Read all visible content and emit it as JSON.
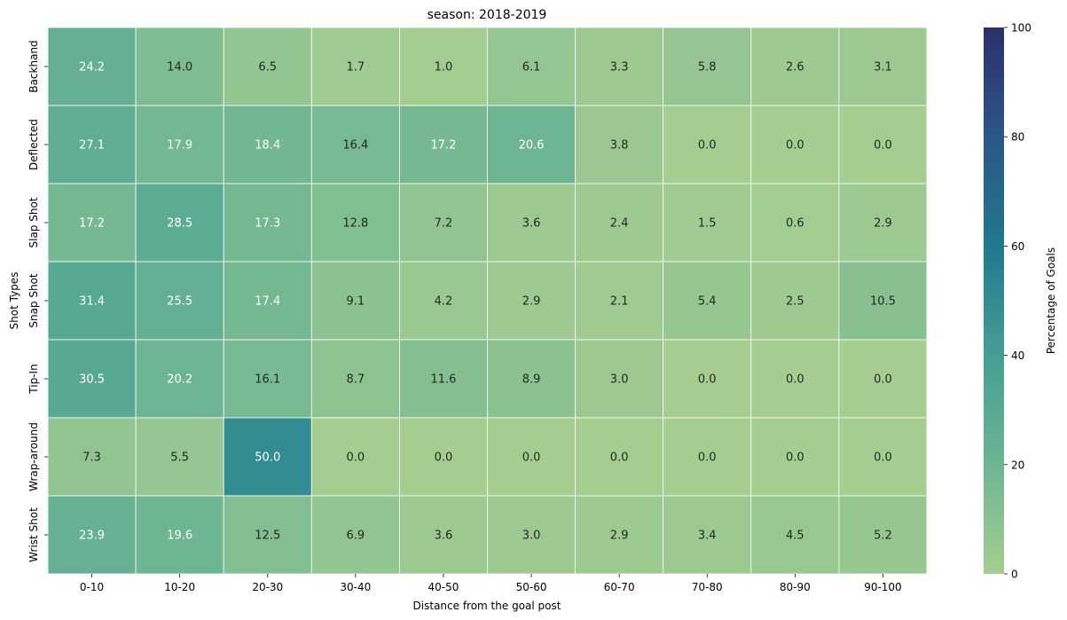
{
  "chart_data": {
    "type": "heatmap",
    "title": "season: 2018-2019",
    "xlabel": "Distance from the goal post",
    "ylabel": "Shot Types",
    "x_categories": [
      "0-10",
      "10-20",
      "20-30",
      "30-40",
      "40-50",
      "50-60",
      "60-70",
      "70-80",
      "80-90",
      "90-100"
    ],
    "y_categories": [
      "Backhand",
      "Deflected",
      "Slap Shot",
      "Snap Shot",
      "Tip-In",
      "Wrap-around",
      "Wrist Shot"
    ],
    "values": [
      [
        24.2,
        14.0,
        6.5,
        1.7,
        1.0,
        6.1,
        3.3,
        5.8,
        2.6,
        3.1
      ],
      [
        27.1,
        17.9,
        18.4,
        16.4,
        17.2,
        20.6,
        3.8,
        0.0,
        0.0,
        0.0
      ],
      [
        17.2,
        28.5,
        17.3,
        12.8,
        7.2,
        3.6,
        2.4,
        1.5,
        0.6,
        2.9
      ],
      [
        31.4,
        25.5,
        17.4,
        9.1,
        4.2,
        2.9,
        2.1,
        5.4,
        2.5,
        10.5
      ],
      [
        30.5,
        20.2,
        16.1,
        8.7,
        11.6,
        8.9,
        3.0,
        0.0,
        0.0,
        0.0
      ],
      [
        7.3,
        5.5,
        50.0,
        0.0,
        0.0,
        0.0,
        0.0,
        0.0,
        0.0,
        0.0
      ],
      [
        23.9,
        19.6,
        12.5,
        6.9,
        3.6,
        3.0,
        2.9,
        3.4,
        4.5,
        5.2
      ]
    ],
    "colorbar": {
      "label": "Percentage of Goals",
      "vmin": 0,
      "vmax": 100,
      "ticks": [
        0,
        20,
        40,
        60,
        80,
        100
      ],
      "colormap": "crest"
    }
  }
}
